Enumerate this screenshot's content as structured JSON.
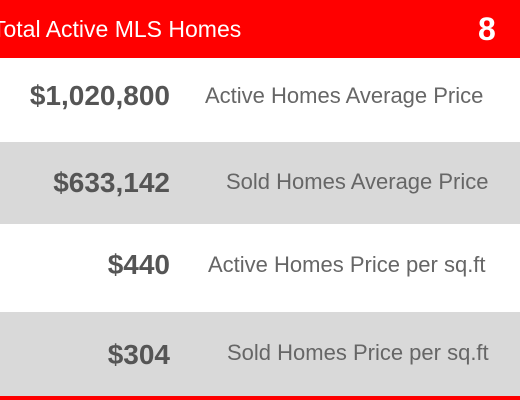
{
  "header": {
    "title": "Total Active MLS Homes",
    "count": "8"
  },
  "stats": [
    {
      "value": "$1,020,800",
      "label": "Active Homes Average Price"
    },
    {
      "value": "$633,142",
      "label": "Sold Homes Average Price"
    },
    {
      "value": "$440",
      "label": "Active Homes Price per sq.ft"
    },
    {
      "value": "$304",
      "label": "Sold Homes Price per sq.ft"
    }
  ],
  "colors": {
    "accent": "#ff0000",
    "row_alt": "#d9d9d9",
    "value_text": "#555555",
    "label_text": "#666666"
  }
}
